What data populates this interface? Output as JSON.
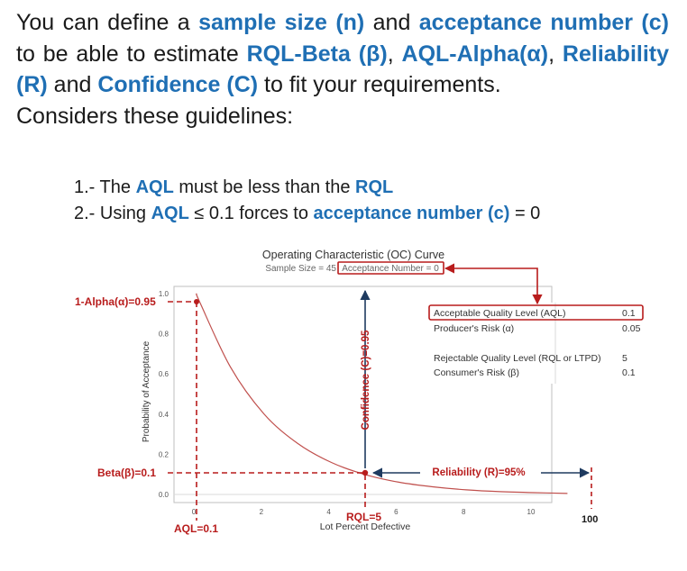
{
  "intro": {
    "p1": "You can define a ",
    "sample_size": "sample size (n)",
    "p2": " and ",
    "acceptance_number": "acceptance number (c)",
    "p3": " to be able to estimate ",
    "rql_beta": "RQL-Beta (β)",
    "p4": ", ",
    "aql_alpha": "AQL-Alpha(α)",
    "p5": ", ",
    "reliability": "Reliability (R)",
    "p6": " and ",
    "confidence": "Confidence (C)",
    "p7": " to fit your requirements.",
    "considers": "Considers these guidelines:"
  },
  "guidelines": {
    "g1_prefix": "1.- The ",
    "g1_aql": "AQL",
    "g1_mid": " must be less than the ",
    "g1_rql": "RQL",
    "g2_prefix": "2.- Using ",
    "g2_aql": "AQL",
    "g2_mid": " ≤ 0.1 forces to ",
    "g2_acc": "acceptance number (c)",
    "g2_suffix": " = 0"
  },
  "chart": {
    "title": "Operating Characteristic (OC) Curve",
    "subtitle_sample": "Sample Size = 45",
    "subtitle_accept": "Acceptance Number = 0",
    "xlabel": "Lot Percent Defective",
    "ylabel": "Probability of Acceptance",
    "xticks": [
      "0",
      "2",
      "4",
      "6",
      "8",
      "10"
    ],
    "yticks": [
      "1.0",
      "0.8",
      "0.6",
      "0.4",
      "0.2",
      "0.0"
    ],
    "table": {
      "aql_label": "Acceptable Quality Level (AQL)",
      "aql_value": "0.1",
      "producer_label": "Producer's Risk (α)",
      "producer_value": "0.05",
      "rql_label": "Rejectable Quality Level (RQL or LTPD)",
      "rql_value": "5",
      "consumer_label": "Consumer's Risk (β)",
      "consumer_value": "0.1"
    }
  },
  "annotations": {
    "alpha": "1-Alpha(α)=0.95",
    "beta": "Beta(β)=0.1",
    "aql": "AQL=0.1",
    "rql": "RQL=5",
    "confidence": "Confidence (C)=0.95",
    "reliability": "Reliability (R)=95%",
    "hundred": "100"
  },
  "colors": {
    "accent_blue": "#1f6fb4",
    "annotation_red": "#b81c1c",
    "curve": "#c0504d",
    "arrow_dark": "#1e3a5f"
  },
  "chart_data": {
    "type": "line",
    "title": "Operating Characteristic (OC) Curve",
    "xlabel": "Lot Percent Defective",
    "ylabel": "Probability of Acceptance",
    "xlim": [
      0,
      11
    ],
    "ylim": [
      0,
      1
    ],
    "x": [
      0,
      0.1,
      1,
      2,
      3,
      4,
      5,
      6,
      7,
      8,
      9,
      10,
      11
    ],
    "series": [
      {
        "values": [
          1.0,
          0.956,
          0.636,
          0.401,
          0.254,
          0.159,
          0.099,
          0.061,
          0.038,
          0.023,
          0.014,
          0.009,
          0.005
        ]
      }
    ]
  }
}
